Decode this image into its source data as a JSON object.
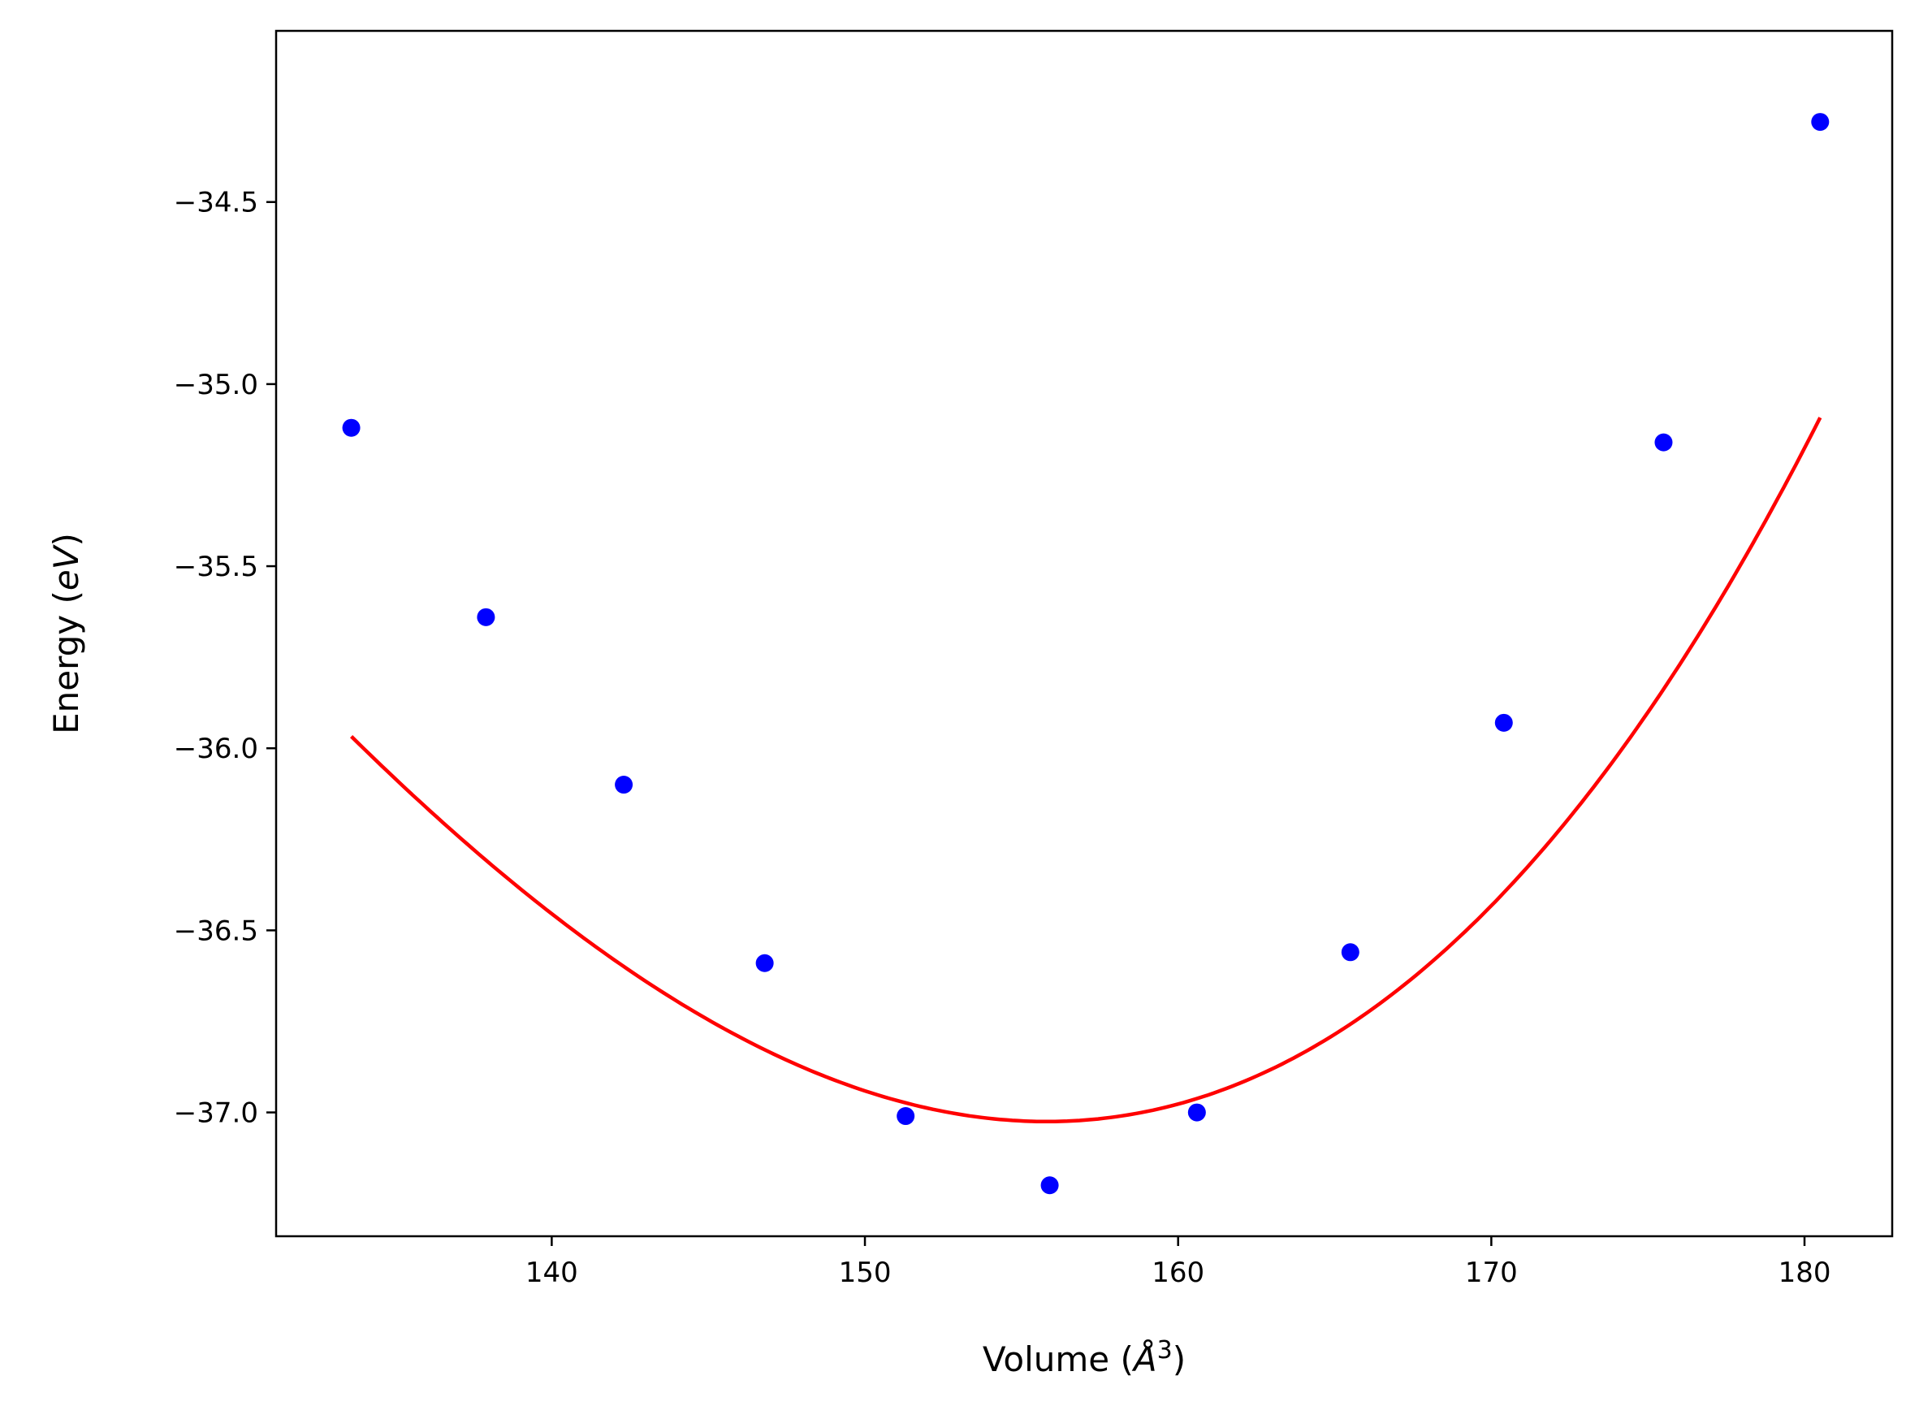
{
  "chart_data": {
    "type": "scatter",
    "title": "",
    "xlabel": "Volume (Å³)",
    "xlabel_parts": {
      "prefix": "Volume (",
      "symbol": "Å",
      "exponent": "3",
      "suffix": ")"
    },
    "ylabel": "Energy (eV)",
    "ylabel_parts": {
      "prefix": "Energy (",
      "italic": "eV",
      "suffix": ")"
    },
    "xlim": [
      131.2,
      182.8
    ],
    "ylim": [
      -37.34,
      -34.03
    ],
    "x_ticks": [
      140,
      150,
      160,
      170,
      180
    ],
    "x_tick_labels": [
      "140",
      "150",
      "160",
      "170",
      "180"
    ],
    "y_ticks": [
      -34.5,
      -35.0,
      -35.5,
      -36.0,
      -36.5,
      -37.0
    ],
    "y_tick_labels": [
      "−34.5",
      "−35.0",
      "−35.5",
      "−36.0",
      "−36.5",
      "−37.0"
    ],
    "grid": false,
    "legend": "none",
    "series": [
      {
        "kind": "scatter",
        "color": "#0000ff",
        "x": [
          133.6,
          137.9,
          142.3,
          146.8,
          151.3,
          155.9,
          160.6,
          165.5,
          170.4,
          175.5,
          180.5
        ],
        "y": [
          -35.12,
          -35.64,
          -36.1,
          -36.59,
          -37.01,
          -37.2,
          -37.0,
          -36.56,
          -35.93,
          -35.16,
          -34.28
        ]
      },
      {
        "kind": "line",
        "color": "#ff0000",
        "fit": {
          "x_min": 133.6,
          "x_max": 180.5,
          "v0": 155.8,
          "e0": -37.025,
          "a": 0.00263,
          "b": 2.18e-05
        }
      }
    ]
  }
}
